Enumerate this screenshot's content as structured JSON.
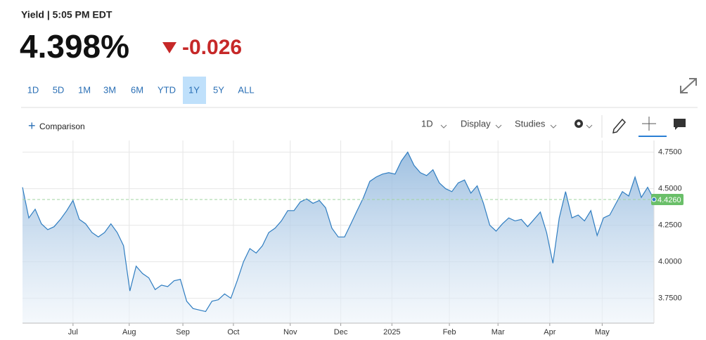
{
  "header": {
    "title": "Yield | 5:05 PM EDT",
    "price": "4.398%",
    "change": "-0.026"
  },
  "ranges": [
    "1D",
    "5D",
    "1M",
    "3M",
    "6M",
    "YTD",
    "1Y",
    "5Y",
    "ALL"
  ],
  "selected_range": "1Y",
  "toolbar": {
    "comparison": "Comparison",
    "interval": "1D",
    "display": "Display",
    "studies": "Studies"
  },
  "chart_data": {
    "type": "area",
    "color": "#2f7dc1",
    "values": [
      4.51,
      4.3,
      4.36,
      4.26,
      4.22,
      4.24,
      4.29,
      4.35,
      4.42,
      4.29,
      4.26,
      4.2,
      4.17,
      4.2,
      4.26,
      4.2,
      4.11,
      3.8,
      3.97,
      3.92,
      3.89,
      3.81,
      3.84,
      3.83,
      3.87,
      3.88,
      3.73,
      3.68,
      3.67,
      3.66,
      3.73,
      3.74,
      3.78,
      3.75,
      3.87,
      4.0,
      4.09,
      4.06,
      4.11,
      4.2,
      4.23,
      4.28,
      4.35,
      4.35,
      4.41,
      4.43,
      4.4,
      4.42,
      4.37,
      4.23,
      4.17,
      4.17,
      4.26,
      4.35,
      4.44,
      4.55,
      4.58,
      4.6,
      4.61,
      4.6,
      4.69,
      4.75,
      4.66,
      4.61,
      4.59,
      4.63,
      4.54,
      4.5,
      4.48,
      4.54,
      4.56,
      4.47,
      4.52,
      4.4,
      4.25,
      4.21,
      4.26,
      4.3,
      4.28,
      4.29,
      4.24,
      4.29,
      4.34,
      4.2,
      3.99,
      4.3,
      4.48,
      4.3,
      4.32,
      4.28,
      4.35,
      4.18,
      4.3,
      4.32,
      4.4,
      4.48,
      4.45,
      4.58,
      4.44,
      4.51,
      4.426
    ],
    "xlim": [
      0,
      100
    ],
    "xticks": [
      {
        "value": 8,
        "label": "Jul"
      },
      {
        "value": 16.9,
        "label": "Aug"
      },
      {
        "value": 25.4,
        "label": "Sep"
      },
      {
        "value": 33.4,
        "label": "Oct"
      },
      {
        "value": 42.4,
        "label": "Nov"
      },
      {
        "value": 50.4,
        "label": "Dec"
      },
      {
        "value": 58.5,
        "label": "2025"
      },
      {
        "value": 67.6,
        "label": "Feb"
      },
      {
        "value": 75.3,
        "label": "Mar"
      },
      {
        "value": 83.5,
        "label": "Apr"
      },
      {
        "value": 91.8,
        "label": "May"
      }
    ],
    "ylim": [
      3.58,
      4.83
    ],
    "yticks": [
      {
        "value": 3.75,
        "label": "3.7500"
      },
      {
        "value": 4.0,
        "label": "4.0000"
      },
      {
        "value": 4.25,
        "label": "4.2500"
      },
      {
        "value": 4.5,
        "label": "4.5000"
      },
      {
        "value": 4.75,
        "label": "4.7500"
      }
    ],
    "grid": true,
    "last_label": {
      "value": 4.426,
      "label": "4.4260"
    },
    "last_label_color": "#6abf69"
  }
}
